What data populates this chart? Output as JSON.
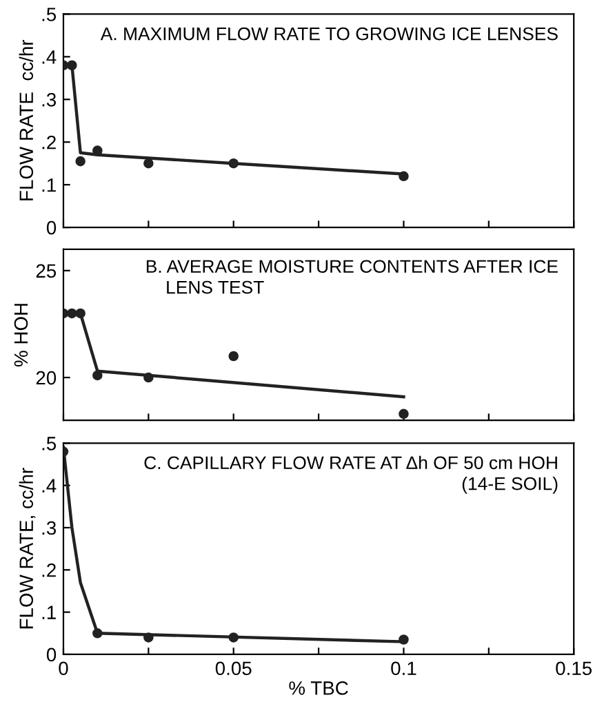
{
  "chart_data": [
    {
      "type": "scatter",
      "title": "A. MAXIMUM FLOW RATE TO GROWING ICE LENSES",
      "ylabel": "FLOW RATE  cc/hr",
      "grid": false,
      "legend": false,
      "tick_labels": "y",
      "xlim": [
        0,
        0.15
      ],
      "xticks": [
        0,
        0.025,
        0.05,
        0.075,
        0.1,
        0.125,
        0.15
      ],
      "ylim": [
        0,
        0.5
      ],
      "yticks": [
        {
          "value": 0,
          "label": "0"
        },
        {
          "value": 0.1,
          "label": ".1"
        },
        {
          "value": 0.2,
          "label": ".2"
        },
        {
          "value": 0.3,
          "label": ".3"
        },
        {
          "value": 0.4,
          "label": ".4"
        },
        {
          "value": 0.5,
          "label": ".5"
        }
      ],
      "series": [
        {
          "marker": "circle",
          "color": "#222222",
          "x": [
            0,
            0.0025,
            0.005,
            0.01,
            0.025,
            0.05,
            0.1
          ],
          "values": [
            0.38,
            0.38,
            0.155,
            0.18,
            0.15,
            0.15,
            0.12
          ]
        },
        {
          "type": "line",
          "marker": "none",
          "color": "#222222",
          "x": [
            0,
            0.0025,
            0.005,
            0.01,
            0.05,
            0.1
          ],
          "values": [
            0.38,
            0.38,
            0.175,
            0.17,
            0.15,
            0.125
          ]
        }
      ]
    },
    {
      "type": "scatter",
      "title": "B. AVERAGE MOISTURE CONTENTS AFTER ICE\n    LENS TEST",
      "ylabel": "% HOH",
      "grid": false,
      "legend": false,
      "tick_labels": "y",
      "xlim": [
        0,
        0.15
      ],
      "xticks": [
        0,
        0.025,
        0.05,
        0.075,
        0.1,
        0.125,
        0.15
      ],
      "ylim": [
        18,
        26
      ],
      "yticks": [
        20,
        25
      ],
      "series": [
        {
          "marker": "circle",
          "color": "#222222",
          "x": [
            0,
            0.0025,
            0.005,
            0.01,
            0.025,
            0.05,
            0.1
          ],
          "values": [
            23,
            23,
            23,
            20.1,
            20,
            21,
            18.3
          ]
        },
        {
          "type": "line",
          "marker": "none",
          "color": "#222222",
          "x": [
            0,
            0.005,
            0.01,
            0.1
          ],
          "values": [
            23,
            23,
            20.3,
            19.1
          ]
        }
      ]
    },
    {
      "type": "scatter",
      "title": "C. CAPILLARY FLOW RATE AT Δh OF 50 cm HOH\n(14-E SOIL)",
      "xlabel": "% TBC",
      "ylabel": "FLOW RATE, cc/hr",
      "grid": false,
      "legend": false,
      "xlim": [
        0,
        0.15
      ],
      "xticks": [
        {
          "value": 0,
          "label": "0"
        },
        {
          "value": 0.025,
          "label": null
        },
        {
          "value": 0.05,
          "label": "0.05"
        },
        {
          "value": 0.075,
          "label": null
        },
        {
          "value": 0.1,
          "label": "0.1"
        },
        {
          "value": 0.125,
          "label": null
        },
        {
          "value": 0.15,
          "label": "0.15"
        }
      ],
      "ylim": [
        0,
        0.5
      ],
      "yticks": [
        {
          "value": 0,
          "label": "0"
        },
        {
          "value": 0.1,
          "label": ".1"
        },
        {
          "value": 0.2,
          "label": ".2"
        },
        {
          "value": 0.3,
          "label": ".3"
        },
        {
          "value": 0.4,
          "label": ".4"
        },
        {
          "value": 0.5,
          "label": ".5"
        }
      ],
      "series": [
        {
          "marker": "circle",
          "color": "#222222",
          "x": [
            0,
            0.01,
            0.025,
            0.05,
            0.1
          ],
          "values": [
            0.48,
            0.05,
            0.04,
            0.04,
            0.035
          ]
        },
        {
          "type": "line",
          "marker": "none",
          "color": "#222222",
          "x": [
            0,
            0.0025,
            0.005,
            0.01,
            0.1
          ],
          "values": [
            0.49,
            0.3,
            0.17,
            0.05,
            0.03
          ]
        }
      ]
    }
  ]
}
